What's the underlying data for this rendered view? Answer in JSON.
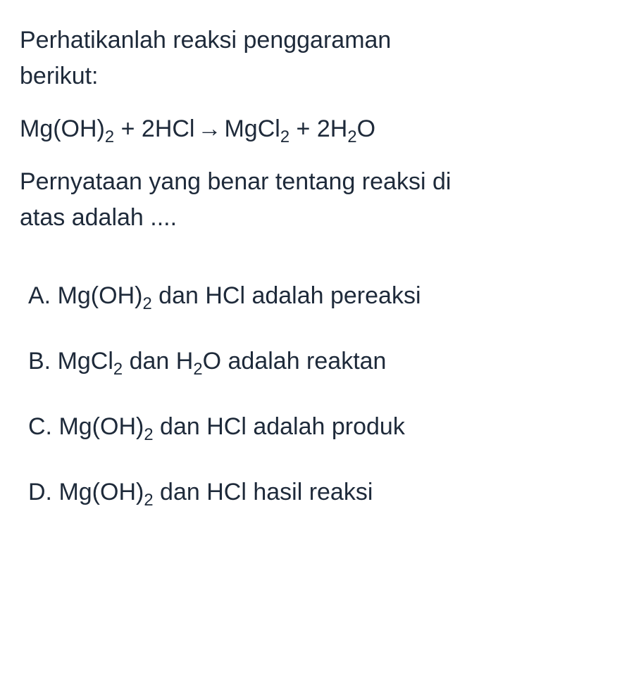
{
  "colors": {
    "text": "#1e2a3a",
    "background": "#ffffff"
  },
  "typography": {
    "fontsize": 34,
    "lineheight": 1.5
  },
  "question": {
    "intro_line1": "Perhatikanlah reaksi penggaraman",
    "intro_line2": "berikut:",
    "equation": {
      "reactant1": "Mg(OH)",
      "reactant1_sub": "2",
      "plus1": " + ",
      "reactant2_coef": "2",
      "reactant2": "HCl",
      "arrow": " → ",
      "product1": "MgCl",
      "product1_sub": "2",
      "plus2": " + ",
      "product2_coef": "2",
      "product2_part1": "H",
      "product2_sub": "2",
      "product2_part2": "O"
    },
    "statement_line1": "Pernyataan yang benar tentang reaksi di",
    "statement_line2": "atas adalah ...."
  },
  "options": {
    "a": {
      "label": "A. ",
      "part1": "Mg(OH)",
      "sub1": "2",
      "part2": " dan HCl adalah pereaksi"
    },
    "b": {
      "label": "B. ",
      "part1": "MgCl",
      "sub1": "2",
      "part2": " dan H",
      "sub2": "2",
      "part3": "O adalah reaktan"
    },
    "c": {
      "label": "C. ",
      "part1": "Mg(OH)",
      "sub1": "2",
      "part2": " dan HCl adalah produk"
    },
    "d": {
      "label": "D. ",
      "part1": "Mg(OH)",
      "sub1": "2",
      "part2": " dan HCl hasil reaksi"
    }
  }
}
